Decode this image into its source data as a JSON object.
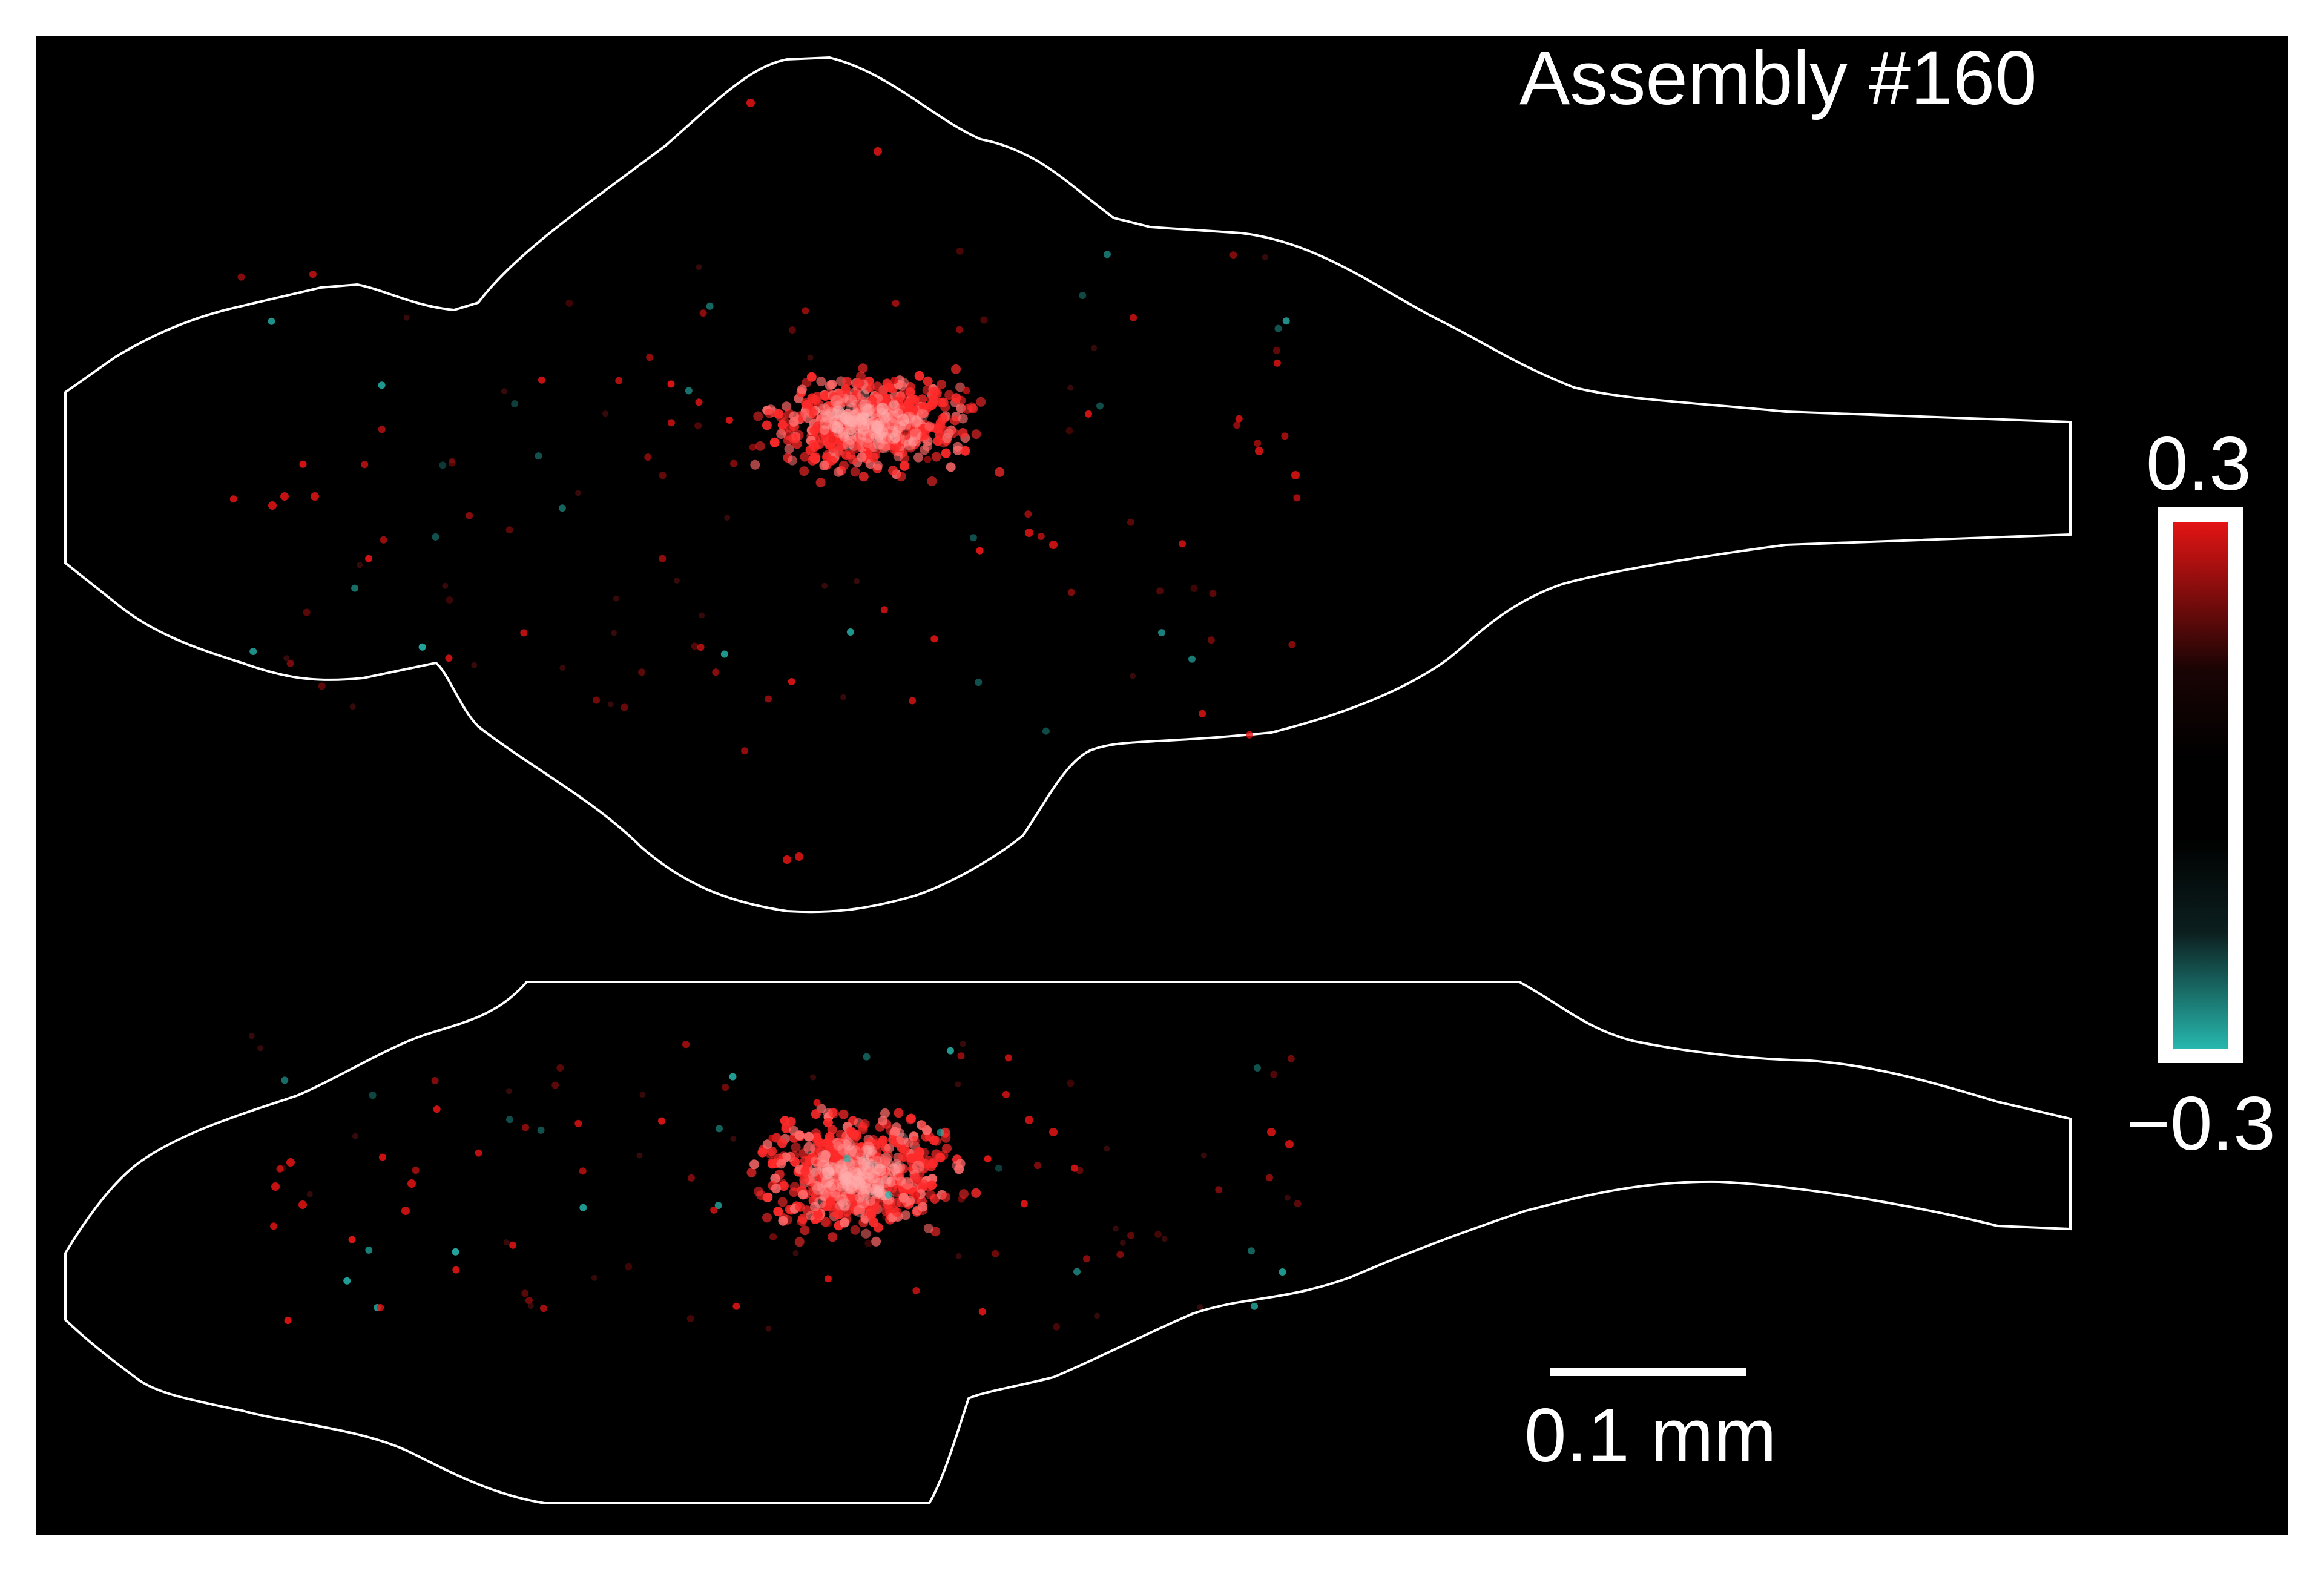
{
  "figure": {
    "title": "Assembly #160",
    "colorbar": {
      "max_label": "0.3",
      "min_label": "−0.3",
      "positive_color": "#e41414",
      "negative_color": "#26b7ad"
    },
    "scale_bar": {
      "label": "0.1 mm"
    },
    "background": "#000000",
    "outline_color": "#ffffff"
  }
}
